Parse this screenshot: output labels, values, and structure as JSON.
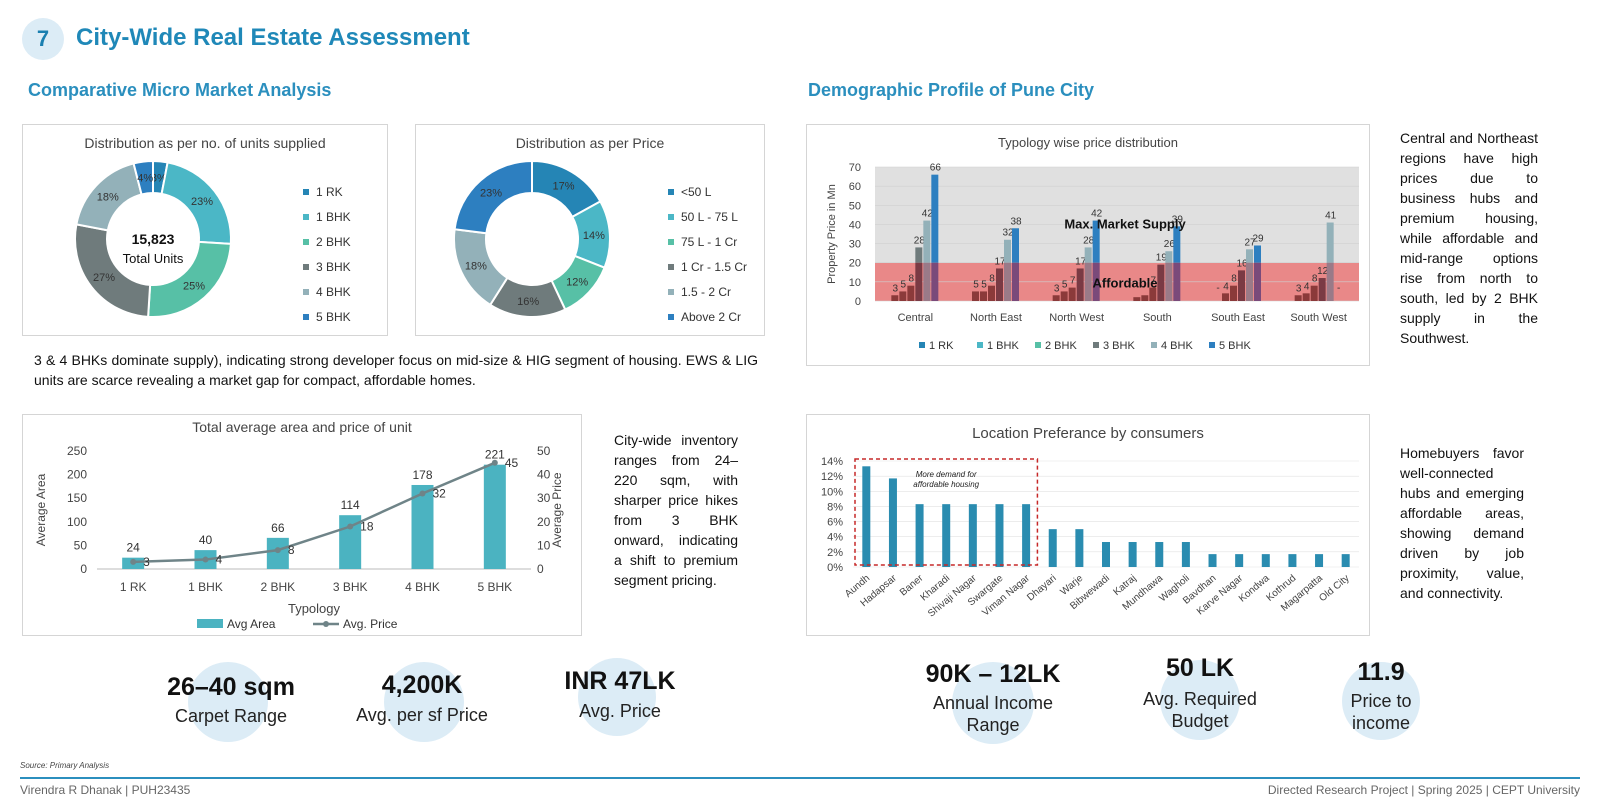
{
  "header": {
    "page_number": "7",
    "title": "City-Wide Real Estate Assessment"
  },
  "sections": {
    "left": "Comparative Micro Market Analysis",
    "right": "Demographic Profile of Pune City"
  },
  "paragraphs": {
    "supply": "3 & 4 BHKs dominate supply), indicating strong developer focus on mid-size & HIG segment of housing. EWS & LIG units are scarce revealing a market gap for compact, affordable homes.",
    "inventory": "City-wide inventory ranges from 24–220 sqm, with sharper price hikes from 3 BHK onward, indicating a shift to premium segment pricing.",
    "regions": "Central and Northeast regions have high prices due to business hubs and premium housing, while affordable and mid-range options rise from north to south, led by 2 BHK supply in the Southwest.",
    "homebuyers": "Homebuyers favor well-connected hubs and emerging affordable areas, showing demand driven by job proximity, value, and connectivity."
  },
  "kpis": [
    {
      "value": "26–40 sqm",
      "label": "Carpet Range"
    },
    {
      "value": "4,200K",
      "label": "Avg. per sf Price"
    },
    {
      "value": "INR 47LK",
      "label": "Avg. Price"
    },
    {
      "value": "90K – 12LK",
      "label": "Annual Income Range"
    },
    {
      "value": "50 LK",
      "label": "Avg. Required Budget"
    },
    {
      "value": "11.9",
      "label": "Price to income"
    }
  ],
  "footer": {
    "source": "Source: Primary Analysis",
    "author": "Virendra R Dhanak | PUH23435",
    "project": "Directed Research Project | Spring 2025 | CEPT University"
  },
  "colors": {
    "accent": "#1f88b8",
    "bar_teal": "#4bb3c1",
    "line_grey": "#6f8488",
    "red_band": "#e57373",
    "grey_band": "#e0e0e0",
    "loc_bar": "#2a8cb0"
  },
  "chart_data": [
    {
      "type": "pie",
      "title": "Distribution as per no. of units supplied",
      "center_value": "15,823",
      "center_label": "Total Units",
      "labels": [
        "1 RK",
        "1 BHK",
        "2 BHK",
        "3 BHK",
        "4 BHK",
        "5 BHK"
      ],
      "values": [
        3,
        23,
        25,
        27,
        18,
        4
      ],
      "value_labels": [
        "3%",
        "23%",
        "25%",
        "27%",
        "18%",
        "4%"
      ],
      "colors": [
        "#2585b5",
        "#4bb7c6",
        "#57c0a6",
        "#6f7b7c",
        "#93b1b9",
        "#2d7fc0"
      ]
    },
    {
      "type": "pie",
      "title": "Distribution as per Price",
      "labels": [
        "<50 L",
        "50 L - 75 L",
        "75 L - 1 Cr",
        "1 Cr - 1.5 Cr",
        "1.5 - 2 Cr",
        "Above 2 Cr"
      ],
      "values": [
        17,
        14,
        12,
        16,
        18,
        23
      ],
      "value_labels": [
        "17%",
        "14%",
        "12%",
        "16%",
        "18%",
        "23%"
      ],
      "colors": [
        "#2585b5",
        "#4bb7c6",
        "#57c0a6",
        "#6f7b7c",
        "#93b1b9",
        "#2d7fc0"
      ]
    },
    {
      "type": "bar",
      "title": "Total average area and price of unit",
      "categories": [
        "1 RK",
        "1 BHK",
        "2 BHK",
        "3 BHK",
        "4 BHK",
        "5 BHK"
      ],
      "xlabel": "Typology",
      "ylabel": "Average Area",
      "y2label": "Average Price",
      "ylim": [
        0,
        250
      ],
      "yticks": [
        0,
        50,
        100,
        150,
        200,
        250
      ],
      "y2lim": [
        0,
        50
      ],
      "y2ticks": [
        0,
        10,
        20,
        30,
        40,
        50
      ],
      "series": [
        {
          "name": "Avg Area",
          "type": "bar",
          "values": [
            24,
            40,
            66,
            114,
            178,
            221
          ]
        },
        {
          "name": "Avg. Price",
          "type": "line",
          "axis": "right",
          "values": [
            3,
            4,
            8,
            18,
            32,
            45
          ]
        }
      ]
    },
    {
      "type": "bar",
      "title": "Typology wise price distribution",
      "categories": [
        "Central",
        "North East",
        "North West",
        "South",
        "South East",
        "South West"
      ],
      "ylabel": "Property Price in Mn",
      "ylim": [
        0,
        70
      ],
      "yticks": [
        0,
        10,
        20,
        30,
        40,
        50,
        60,
        70
      ],
      "bands": [
        {
          "label": "Max. Market Supply",
          "from": 20,
          "to": 70
        },
        {
          "label": "Affordable",
          "from": 0,
          "to": 20
        }
      ],
      "series": [
        {
          "name": "1 RK",
          "values": [
            3,
            5,
            3,
            2,
            0,
            3
          ],
          "labels": [
            "3",
            "5",
            "3",
            "",
            "-",
            "3"
          ]
        },
        {
          "name": "1 BHK",
          "values": [
            5,
            5,
            5,
            3,
            4,
            4
          ],
          "labels": [
            "5",
            "5",
            "5",
            "",
            "4",
            "4"
          ]
        },
        {
          "name": "2 BHK",
          "values": [
            8,
            8,
            7,
            7,
            8,
            8
          ],
          "labels": [
            "8",
            "8",
            "7",
            "7",
            "8",
            "8"
          ]
        },
        {
          "name": "3 BHK",
          "values": [
            28,
            17,
            17,
            19,
            16,
            12
          ],
          "labels": [
            "28",
            "17",
            "17",
            "19",
            "16",
            "12"
          ]
        },
        {
          "name": "4 BHK",
          "values": [
            42,
            32,
            28,
            26,
            27,
            41
          ],
          "labels": [
            "42",
            "32",
            "28",
            "26",
            "27",
            "41"
          ]
        },
        {
          "name": "5 BHK",
          "values": [
            66,
            38,
            42,
            39,
            29,
            0
          ],
          "labels": [
            "66",
            "38",
            "42",
            "39",
            "29",
            "-"
          ]
        }
      ]
    },
    {
      "type": "bar",
      "title": "Location Preferance by consumers",
      "categories": [
        "Aundh",
        "Hadapsar",
        "Baner",
        "Kharadi",
        "Shivaji Nagar",
        "Swargate",
        "Viman Nagar",
        "Dhayari",
        "Warje",
        "Bibwewadi",
        "Katraj",
        "Mundhawa",
        "Wagholi",
        "Bavdhan",
        "Karve Nagar",
        "Kondwa",
        "Kothrud",
        "Magarpatta",
        "Old City"
      ],
      "values": [
        13.3,
        11.7,
        8.3,
        8.3,
        8.3,
        8.3,
        8.3,
        5.0,
        5.0,
        3.3,
        3.3,
        3.3,
        3.3,
        1.7,
        1.7,
        1.7,
        1.7,
        1.7,
        1.7
      ],
      "ylim": [
        0,
        14
      ],
      "yticks": [
        0,
        2,
        4,
        6,
        8,
        10,
        12,
        14
      ],
      "annotation": "More demand for affordable housing"
    }
  ]
}
